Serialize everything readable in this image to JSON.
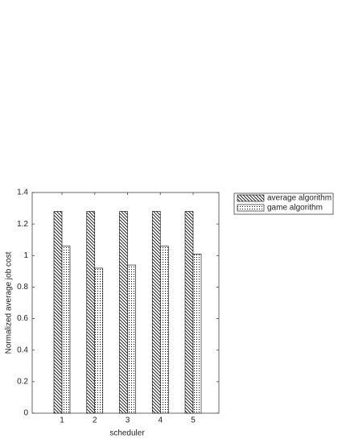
{
  "chart_data": {
    "type": "bar",
    "x_label": "scheduler",
    "y_label": "Normalized average job cost",
    "categories": [
      "1",
      "2",
      "3",
      "4",
      "5"
    ],
    "series": [
      {
        "name": "average algorithm",
        "pattern": "hatch",
        "values": [
          1.28,
          1.28,
          1.28,
          1.28,
          1.28
        ]
      },
      {
        "name": "game algorithm",
        "pattern": "dots",
        "values": [
          1.06,
          0.92,
          0.94,
          1.06,
          1.01
        ]
      }
    ],
    "ylim": [
      0,
      1.4
    ],
    "yticks": [
      0,
      0.2,
      0.4,
      0.6,
      0.8,
      1,
      1.2,
      1.4
    ]
  }
}
